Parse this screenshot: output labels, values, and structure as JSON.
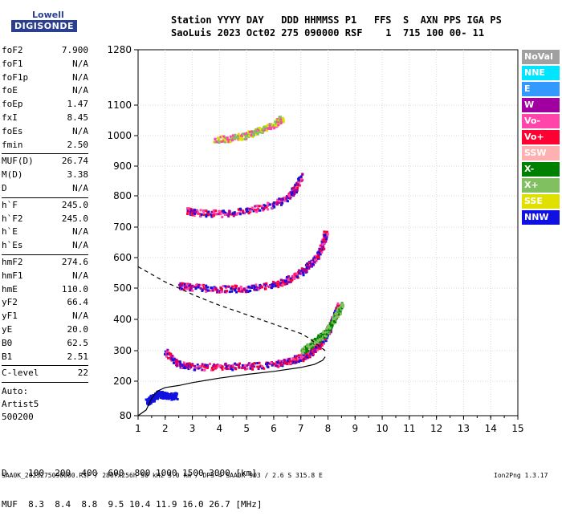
{
  "logo": {
    "top": "Lowell",
    "bottom": "DIGISONDE"
  },
  "header": {
    "line1": "Station YYYY DAY   DDD HHMMSS P1   FFS  S  AXN PPS IGA PS",
    "line2": "SaoLuis 2023 Oct02 275 090000 RSF    1  715 100 00- 11"
  },
  "params": [
    {
      "label": "foF2",
      "value": "7.900"
    },
    {
      "label": "foF1",
      "value": "N/A"
    },
    {
      "label": "foF1p",
      "value": "N/A"
    },
    {
      "label": "foE",
      "value": "N/A"
    },
    {
      "label": "foEp",
      "value": "1.47"
    },
    {
      "label": "fxI",
      "value": "8.45"
    },
    {
      "label": "foEs",
      "value": "N/A"
    },
    {
      "label": "fmin",
      "value": "2.50"
    },
    {
      "sep": true
    },
    {
      "label": "MUF(D)",
      "value": "26.74"
    },
    {
      "label": "M(D)",
      "value": "3.38"
    },
    {
      "label": "D",
      "value": "N/A"
    },
    {
      "sep": true
    },
    {
      "label": "h`F",
      "value": "245.0"
    },
    {
      "label": "h`F2",
      "value": "245.0"
    },
    {
      "label": "h`E",
      "value": "N/A"
    },
    {
      "label": "h`Es",
      "value": "N/A"
    },
    {
      "sep": true
    },
    {
      "label": "hmF2",
      "value": "274.6"
    },
    {
      "label": "hmF1",
      "value": "N/A"
    },
    {
      "label": "hmE",
      "value": "110.0"
    },
    {
      "label": "yF2",
      "value": "66.4"
    },
    {
      "label": "yF1",
      "value": "N/A"
    },
    {
      "label": "yE",
      "value": "20.0"
    },
    {
      "label": "B0",
      "value": "62.5"
    },
    {
      "label": "B1",
      "value": "2.51"
    },
    {
      "sep": true
    },
    {
      "label": "C-level",
      "value": "22"
    },
    {
      "sep": true
    }
  ],
  "auto": [
    "Auto:",
    "Artist5",
    "500200"
  ],
  "legend": [
    {
      "label": "NoVal",
      "color": "#a0a0a0"
    },
    {
      "label": "NNE",
      "color": "#00e5ff"
    },
    {
      "label": "E",
      "color": "#3399ff"
    },
    {
      "label": "W",
      "color": "#a000a0"
    },
    {
      "label": "Vo-",
      "color": "#ff44aa"
    },
    {
      "label": "Vo+",
      "color": "#ff0033"
    },
    {
      "label": "SSW",
      "color": "#ffb0b0"
    },
    {
      "label": "X-",
      "color": "#008000"
    },
    {
      "label": "X+",
      "color": "#80c060"
    },
    {
      "label": "SSE",
      "color": "#e0e000"
    },
    {
      "label": "NNW",
      "color": "#1010e0"
    }
  ],
  "mufd": {
    "row1": "D    100  200  400  600  800 1000 1500 3000 [km]",
    "row2": "MUF  8.3  8.4  8.8  9.5 10.4 11.9 16.0 26.7 [MHz]"
  },
  "footer": {
    "left": "SAA0K_2023275090000.RSF / 280fx256h 50 kHz 5.0 km / DPS-4 SAA0K 903 / 2.6 S 315.8 E",
    "right": "Ion2Png 1.3.17"
  },
  "chart_data": {
    "type": "scatter",
    "xlabel": "",
    "ylabel": "",
    "xlim": [
      1,
      15
    ],
    "ylim": [
      80,
      1280
    ],
    "y_scale": "compressed above 900 km",
    "x_ticks": [
      1,
      2,
      3,
      4,
      5,
      6,
      7,
      8,
      9,
      10,
      11,
      12,
      13,
      14,
      15
    ],
    "y_ticks": [
      80,
      200,
      300,
      400,
      500,
      600,
      700,
      800,
      900,
      1000,
      1100,
      1280
    ],
    "grid": true,
    "traces": [
      {
        "name": "F2 first hop",
        "x": [
          2.0,
          2.4,
          3.0,
          4.0,
          5.0,
          6.0,
          6.5,
          7.0,
          7.3,
          7.6,
          7.8,
          8.0,
          8.2,
          8.4
        ],
        "y": [
          300,
          260,
          250,
          250,
          252,
          258,
          268,
          280,
          295,
          315,
          340,
          370,
          410,
          450
        ],
        "color_mix": [
          "#ff0033",
          "#a000a0",
          "#1010e0",
          "#ff44aa"
        ]
      },
      {
        "name": "F2 second hop",
        "x": [
          2.5,
          3.0,
          4.0,
          5.0,
          6.0,
          6.5,
          7.0,
          7.3,
          7.6,
          7.8,
          7.9
        ],
        "y": [
          510,
          505,
          500,
          502,
          515,
          530,
          555,
          580,
          610,
          650,
          690
        ],
        "color_mix": [
          "#ff0033",
          "#a000a0",
          "#1010e0",
          "#ff44aa"
        ]
      },
      {
        "name": "F2 third hop",
        "x": [
          2.8,
          3.0,
          4.0,
          5.0,
          6.0,
          6.5,
          6.8,
          7.0
        ],
        "y": [
          755,
          750,
          745,
          755,
          775,
          800,
          830,
          870
        ],
        "color_mix": [
          "#ff0033",
          "#a000a0",
          "#1010e0",
          "#ff44aa"
        ]
      },
      {
        "name": "F2 fourth hop",
        "x": [
          3.8,
          4.5,
          5.0,
          5.5,
          6.0,
          6.3
        ],
        "y": [
          990,
          995,
          1005,
          1020,
          1040,
          1060
        ],
        "color_mix": [
          "#ff44aa",
          "#80c060",
          "#e0e000"
        ]
      },
      {
        "name": "F2 X-trace",
        "x": [
          7.0,
          7.3,
          7.6,
          7.9,
          8.1,
          8.3,
          8.5
        ],
        "y": [
          300,
          320,
          340,
          360,
          390,
          420,
          450
        ],
        "color_mix": [
          "#80c060",
          "#008000"
        ]
      },
      {
        "name": "E / Es low trace",
        "x": [
          1.3,
          1.5,
          1.7,
          1.9,
          2.1,
          2.4
        ],
        "y": [
          130,
          145,
          158,
          155,
          150,
          152
        ],
        "color_mix": [
          "#1010e0"
        ]
      }
    ],
    "profile_solid": {
      "x": [
        1.0,
        1.3,
        1.5,
        1.7,
        2.0,
        2.5,
        3.0,
        4.0,
        5.0,
        6.0,
        7.0,
        7.5,
        7.8,
        7.9
      ],
      "y": [
        80,
        100,
        140,
        165,
        178,
        185,
        195,
        210,
        222,
        232,
        245,
        255,
        268,
        280
      ]
    },
    "profile_dashed": {
      "x": [
        1.0,
        1.5,
        2.0,
        2.5,
        3.0,
        3.5,
        4.0,
        4.5,
        5.0,
        5.5,
        6.0,
        6.5,
        7.0,
        7.3,
        7.6,
        7.9
      ],
      "y": [
        570,
        545,
        520,
        500,
        480,
        462,
        445,
        430,
        415,
        400,
        385,
        370,
        355,
        340,
        320,
        300
      ]
    }
  }
}
